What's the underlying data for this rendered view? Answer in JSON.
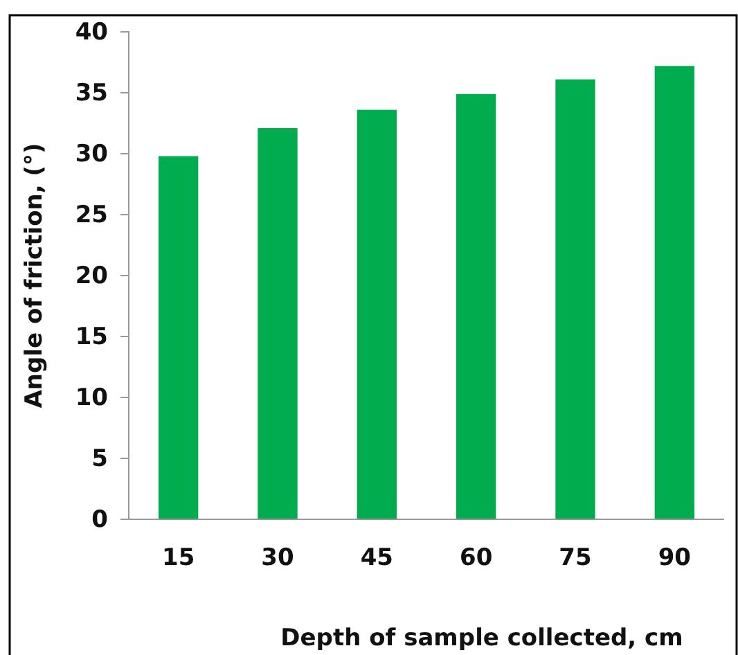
{
  "chart_data": {
    "type": "bar",
    "xlabel": "Depth of sample collected, cm",
    "ylabel": "Angle of friction, (°)",
    "categories": [
      "15",
      "30",
      "45",
      "60",
      "75",
      "90"
    ],
    "values": [
      29.8,
      32.1,
      33.6,
      34.9,
      36.1,
      37.2
    ],
    "color": "#00ac4e",
    "ylim": [
      0,
      40
    ],
    "yticks": [
      0,
      5,
      10,
      15,
      20,
      25,
      30,
      35,
      40
    ],
    "grid": false
  }
}
